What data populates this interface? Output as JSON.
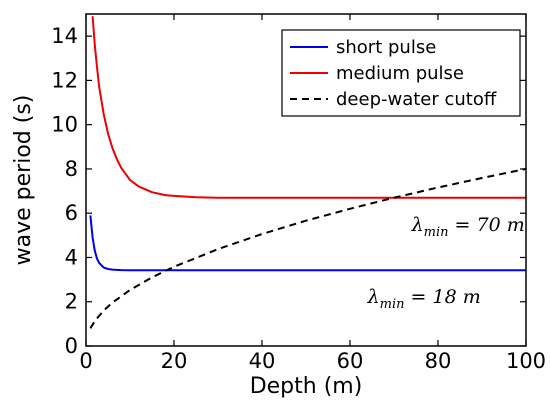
{
  "chart_data": {
    "type": "line",
    "title": "",
    "xlabel": "Depth (m)",
    "ylabel": "wave period (s)",
    "xlim": [
      0,
      100
    ],
    "ylim": [
      0,
      15
    ],
    "xticks": [
      0,
      20,
      40,
      60,
      80,
      100
    ],
    "yticks": [
      0,
      2,
      4,
      6,
      8,
      10,
      12,
      14
    ],
    "grid": false,
    "legend_position": "top-right",
    "series": [
      {
        "name": "short pulse",
        "color": "#0000ee",
        "style": "solid",
        "x": [
          1,
          1.5,
          2,
          2.5,
          3,
          4,
          5,
          6,
          8,
          10,
          15,
          20,
          30,
          40,
          50,
          60,
          70,
          80,
          90,
          100
        ],
        "y": [
          5.9,
          4.9,
          4.3,
          3.95,
          3.75,
          3.55,
          3.48,
          3.45,
          3.43,
          3.42,
          3.42,
          3.42,
          3.42,
          3.42,
          3.42,
          3.42,
          3.42,
          3.42,
          3.42,
          3.42
        ]
      },
      {
        "name": "medium pulse",
        "color": "#ee0000",
        "style": "solid",
        "x": [
          1.5,
          2,
          2.5,
          3,
          4,
          5,
          6,
          7,
          8,
          10,
          12,
          15,
          18,
          20,
          25,
          30,
          40,
          50,
          60,
          70,
          80,
          90,
          100
        ],
        "y": [
          14.9,
          13.6,
          12.6,
          11.7,
          10.5,
          9.6,
          8.95,
          8.45,
          8.05,
          7.5,
          7.2,
          6.95,
          6.82,
          6.78,
          6.72,
          6.7,
          6.7,
          6.7,
          6.7,
          6.7,
          6.7,
          6.7,
          6.7
        ]
      },
      {
        "name": "deep-water cutoff",
        "color": "#000000",
        "style": "dashed",
        "x": [
          1,
          2,
          4,
          6,
          10,
          15,
          20,
          30,
          40,
          50,
          60,
          70,
          80,
          90,
          100
        ],
        "y": [
          0.8,
          1.13,
          1.6,
          1.96,
          2.53,
          3.1,
          3.58,
          4.38,
          5.06,
          5.66,
          6.2,
          6.7,
          7.16,
          7.59,
          8.0
        ]
      }
    ],
    "annotations": [
      {
        "main": "λ",
        "sub": "min",
        "rest": " = 70 m",
        "x": 74,
        "y": 5.2
      },
      {
        "main": "λ",
        "sub": "min",
        "rest": " = 18 m",
        "x": 64,
        "y": 1.95
      }
    ]
  }
}
